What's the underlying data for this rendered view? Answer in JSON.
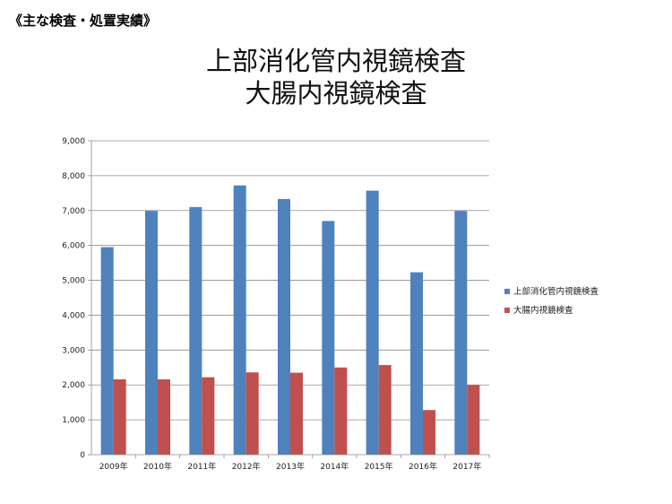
{
  "heading": "《主な検査・処置実績》",
  "chart_data": {
    "type": "bar",
    "title_lines": [
      "上部消化管内視鏡検査",
      "大腸内視鏡検査"
    ],
    "categories": [
      "2009年",
      "2010年",
      "2011年",
      "2012年",
      "2013年",
      "2014年",
      "2015年",
      "2016年",
      "2017年"
    ],
    "series": [
      {
        "name": "上部消化管内視鏡検査",
        "color": "#4F81BD",
        "values": [
          5950,
          6990,
          7100,
          7720,
          7330,
          6700,
          7570,
          5230,
          6990
        ]
      },
      {
        "name": "大腸内視鏡検査",
        "color": "#C0504D",
        "values": [
          2160,
          2160,
          2220,
          2360,
          2350,
          2500,
          2570,
          1280,
          2000
        ]
      }
    ],
    "ylim": [
      0,
      9000
    ],
    "yticks": [
      "0",
      "1,000",
      "2,000",
      "3,000",
      "4,000",
      "5,000",
      "6,000",
      "7,000",
      "8,000",
      "9,000"
    ],
    "ytick_values": [
      0,
      1000,
      2000,
      3000,
      4000,
      5000,
      6000,
      7000,
      8000,
      9000
    ],
    "grid": true,
    "legend_position": "right"
  }
}
